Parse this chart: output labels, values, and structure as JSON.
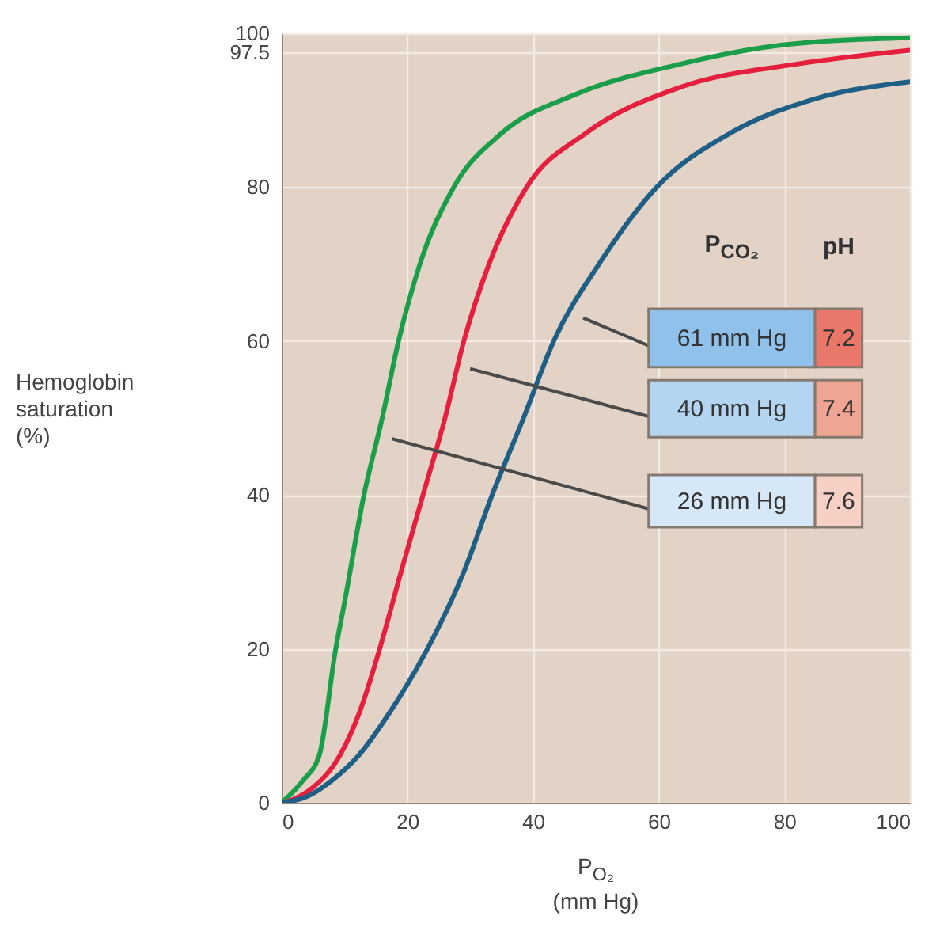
{
  "chart_data": {
    "type": "line",
    "xlabel": "P$_{O₂}$\n(mm Hg)",
    "ylabel": "Hemoglobin\nsaturation\n(%)",
    "xlim": [
      0,
      100
    ],
    "ylim": [
      0,
      100
    ],
    "xticks": [
      0,
      20,
      40,
      60,
      80,
      100
    ],
    "yticks": [
      0,
      20,
      40,
      60,
      80,
      97.5,
      100
    ],
    "grid": true,
    "series": [
      {
        "color": "#1a9e4a",
        "x": [
          0,
          3.4,
          6,
          8.6,
          10,
          13.1,
          16,
          18.6,
          22,
          27.4,
          35,
          46.6,
          63.5,
          80,
          100
        ],
        "values": [
          0,
          2.9,
          6.2,
          20,
          26,
          40,
          50,
          60,
          70,
          80,
          87,
          92,
          96,
          98.5,
          99.4
        ]
      },
      {
        "color": "#e5203f",
        "x": [
          0,
          2,
          5,
          9.3,
          12.5,
          15.6,
          19,
          22.5,
          26,
          29,
          33,
          39,
          48.4,
          63.5,
          82,
          100
        ],
        "values": [
          0,
          0.5,
          2,
          6.2,
          12,
          20,
          30,
          40,
          50,
          60,
          70,
          80,
          87,
          93,
          96,
          97.8
        ]
      },
      {
        "color": "#1f5f86",
        "x": [
          0,
          4,
          8,
          12.3,
          17,
          23.2,
          29,
          33.5,
          38.5,
          43.3,
          50.5,
          59.7,
          71.8,
          85,
          100
        ],
        "values": [
          0,
          0.8,
          2.9,
          6.2,
          11.5,
          20,
          30,
          40,
          50,
          60,
          70,
          80,
          87.2,
          91.5,
          93.7
        ]
      }
    ],
    "annotations": [
      "P$_{CO₂}$",
      "pH",
      "61 mm Hg",
      "7.2",
      "40 mm Hg",
      "7.4",
      "26 mm Hg",
      "7.6"
    ]
  }
}
